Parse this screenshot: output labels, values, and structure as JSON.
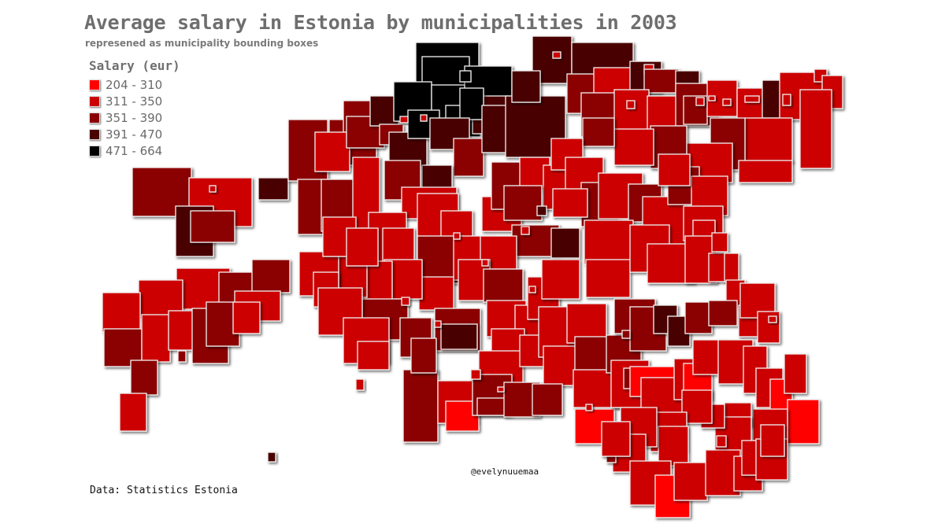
{
  "title": "Average salary in Estonia by municipalities in 2003",
  "subtitle": "represened as municipality bounding boxes",
  "legend": {
    "title": "Salary (eur)",
    "items": [
      {
        "label": "204 - 310",
        "color": "#ff0000"
      },
      {
        "label": "311 - 350",
        "color": "#cc0000"
      },
      {
        "label": "351 - 390",
        "color": "#8b0000"
      },
      {
        "label": "391 - 470",
        "color": "#4a0000"
      },
      {
        "label": "471 - 664",
        "color": "#000000"
      }
    ]
  },
  "credit": "@evelynuuemaa",
  "source": "Data: Statistics Estonia"
}
